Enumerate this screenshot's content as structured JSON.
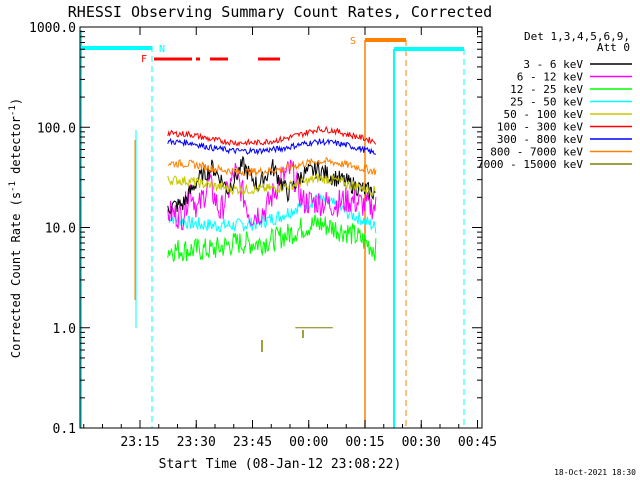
{
  "chart_data": {
    "type": "line",
    "title": "RHESSI Observing Summary Count Rates, Corrected",
    "xlabel": "Start Time (08-Jan-12 23:08:22)",
    "ylabel_main": "Corrected Count Rate (s",
    "ylabel_exp1": "-1",
    "ylabel_mid": " detector",
    "ylabel_exp2": "-1",
    "ylabel_end": ")",
    "yscale": "log",
    "ylim": [
      0.1,
      1000
    ],
    "xlim_min": [
      -9.4,
      97.8
    ],
    "x_ticks": [
      {
        "min": 6.6,
        "label": "23:15"
      },
      {
        "min": 21.6,
        "label": "23:30"
      },
      {
        "min": 36.6,
        "label": "23:45"
      },
      {
        "min": 51.6,
        "label": "00:00"
      },
      {
        "min": 66.6,
        "label": "00:15"
      },
      {
        "min": 81.6,
        "label": "00:30"
      },
      {
        "min": 96.6,
        "label": "00:45"
      }
    ],
    "y_ticks": [
      {
        "value": 0.1,
        "label": "0.1"
      },
      {
        "value": 1,
        "label": "1.0"
      },
      {
        "value": 10,
        "label": "10.0"
      },
      {
        "value": 100,
        "label": "100.0"
      },
      {
        "value": 1000,
        "label": "1000.0"
      }
    ],
    "legend_title_line1": "Det 1,3,4,5,6,9,",
    "legend_title_line2": "Att 0",
    "series": [
      {
        "name": "3 - 6 keV",
        "color": "#000000",
        "points": [
          [
            14.0,
            16
          ],
          [
            18,
            17
          ],
          [
            22,
            30
          ],
          [
            26,
            40
          ],
          [
            30,
            24
          ],
          [
            34,
            42
          ],
          [
            38,
            26
          ],
          [
            42,
            40
          ],
          [
            46,
            22
          ],
          [
            50,
            34
          ],
          [
            54,
            38
          ],
          [
            58,
            32
          ],
          [
            62,
            28
          ],
          [
            66,
            24
          ],
          [
            69.5,
            22
          ]
        ]
      },
      {
        "name": "6 - 12 keV",
        "color": "#ff00ff",
        "points": [
          [
            14.0,
            14
          ],
          [
            18,
            13
          ],
          [
            20,
            25
          ],
          [
            22,
            15
          ],
          [
            25,
            28
          ],
          [
            28,
            14
          ],
          [
            32,
            36
          ],
          [
            36,
            13
          ],
          [
            40,
            15
          ],
          [
            44,
            30
          ],
          [
            47,
            38
          ],
          [
            50,
            18
          ],
          [
            54,
            18
          ],
          [
            58,
            17
          ],
          [
            62,
            19
          ],
          [
            66,
            17
          ],
          [
            69.5,
            16
          ]
        ]
      },
      {
        "name": "12 - 25 keV",
        "color": "#00ff00",
        "points": [
          [
            14.0,
            6
          ],
          [
            20,
            6
          ],
          [
            26,
            6
          ],
          [
            32,
            7
          ],
          [
            38,
            7
          ],
          [
            42,
            7.5
          ],
          [
            46,
            8.5
          ],
          [
            50,
            10
          ],
          [
            54,
            11
          ],
          [
            58,
            10
          ],
          [
            62,
            9
          ],
          [
            66,
            7.5
          ],
          [
            69.5,
            6
          ]
        ]
      },
      {
        "name": "25 - 50 keV",
        "color": "#00ffff",
        "points": [
          [
            14.0,
            13
          ],
          [
            20,
            11
          ],
          [
            26,
            10.5
          ],
          [
            32,
            10.5
          ],
          [
            38,
            11
          ],
          [
            44,
            13
          ],
          [
            50,
            17
          ],
          [
            54,
            19
          ],
          [
            58,
            17
          ],
          [
            62,
            14
          ],
          [
            66,
            12
          ],
          [
            69.5,
            10
          ]
        ]
      },
      {
        "name": "50 - 100 keV",
        "color": "#c8c800",
        "points": [
          [
            14.0,
            30
          ],
          [
            20,
            29
          ],
          [
            26,
            26
          ],
          [
            32,
            24
          ],
          [
            38,
            24
          ],
          [
            44,
            25
          ],
          [
            50,
            28
          ],
          [
            54,
            31
          ],
          [
            58,
            30
          ],
          [
            62,
            27
          ],
          [
            66,
            25
          ],
          [
            69.5,
            23
          ]
        ]
      },
      {
        "name": "100 - 300 keV",
        "color": "#ff0000",
        "points": [
          [
            14.0,
            87
          ],
          [
            20,
            85
          ],
          [
            26,
            75
          ],
          [
            32,
            70
          ],
          [
            38,
            70
          ],
          [
            44,
            75
          ],
          [
            50,
            86
          ],
          [
            54,
            96
          ],
          [
            58,
            93
          ],
          [
            62,
            85
          ],
          [
            66,
            78
          ],
          [
            69.5,
            72
          ]
        ]
      },
      {
        "name": "300 - 800 keV",
        "color": "#0000ff",
        "points": [
          [
            14.0,
            72
          ],
          [
            20,
            70
          ],
          [
            26,
            62
          ],
          [
            32,
            58
          ],
          [
            38,
            58
          ],
          [
            44,
            61
          ],
          [
            50,
            68
          ],
          [
            54,
            72
          ],
          [
            58,
            70
          ],
          [
            62,
            66
          ],
          [
            66,
            60
          ],
          [
            69.5,
            55
          ]
        ]
      },
      {
        "name": "800 - 7000 keV",
        "color": "#ff8000",
        "points": [
          [
            14.0,
            44
          ],
          [
            20,
            43
          ],
          [
            26,
            39
          ],
          [
            32,
            36
          ],
          [
            38,
            36
          ],
          [
            44,
            38
          ],
          [
            50,
            43
          ],
          [
            54,
            46
          ],
          [
            58,
            45
          ],
          [
            62,
            42
          ],
          [
            66,
            39
          ],
          [
            69.5,
            36
          ]
        ]
      },
      {
        "name": "7000 - 15000 keV",
        "color": "#808000",
        "points": [
          [
            48.0,
            1.0
          ],
          [
            58.0,
            1.0
          ]
        ]
      }
    ],
    "annotations": [
      {
        "label": "N",
        "color": "#00ffff",
        "at_min": 26.6
      },
      {
        "label": "F",
        "color": "#ff0000",
        "at_min": 23.9
      },
      {
        "label": "S",
        "color": "#ff8000",
        "at_min": 70.7
      }
    ],
    "footer_date": "18-Oct-2021 18:30"
  }
}
